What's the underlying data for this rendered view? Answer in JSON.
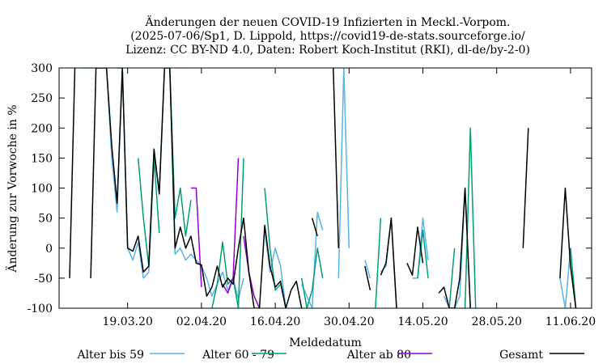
{
  "chart_data": {
    "type": "line",
    "title_lines": [
      "Änderungen der neuen COVID-19 Infizierten in Meckl.-Vorpom.",
      "(2025-07-06/Sp1, D. Lippold, https://covid19-de-stats.sourceforge.io/",
      "Lizenz: CC BY-ND 4.0, Daten: Robert Koch-Institut (RKI), dl-de/by-2-0)"
    ],
    "xlabel": "Meldedatum",
    "ylabel": "Änderung zur Vorwoche in %",
    "x_range": [
      "2020-03-06",
      "2020-06-15"
    ],
    "ylim": [
      -100,
      300
    ],
    "y_ticks": [
      -100,
      -50,
      0,
      50,
      100,
      150,
      200,
      250,
      300
    ],
    "x_ticks": [
      {
        "date": "2020-03-19",
        "label": "19.03.20"
      },
      {
        "date": "2020-04-02",
        "label": "02.04.20"
      },
      {
        "date": "2020-04-16",
        "label": "16.04.20"
      },
      {
        "date": "2020-04-30",
        "label": "30.04.20"
      },
      {
        "date": "2020-05-14",
        "label": "14.05.20"
      },
      {
        "date": "2020-05-28",
        "label": "28.05.20"
      },
      {
        "date": "2020-06-11",
        "label": "11.06.20"
      }
    ],
    "grid": false,
    "legend_position": "bottom",
    "series": [
      {
        "name": "Alter bis 59",
        "color": "#56b4e9",
        "points": [
          [
            "2020-03-10",
            300
          ],
          [
            "2020-03-14",
            300
          ],
          [
            "2020-03-15",
            300
          ],
          [
            "2020-03-16",
            150
          ],
          [
            "2020-03-17",
            60
          ],
          [
            "2020-03-18",
            300
          ],
          [
            "2020-03-19",
            0
          ],
          [
            "2020-03-20",
            -20
          ],
          [
            "2020-03-21",
            10
          ],
          [
            "2020-03-22",
            -50
          ],
          [
            "2020-03-23",
            -40
          ],
          [
            "2020-03-24",
            150
          ],
          [
            "2020-03-25",
            100
          ],
          [
            "2020-03-26",
            300
          ],
          [
            "2020-03-27",
            300
          ],
          [
            "2020-03-28",
            -10
          ],
          [
            "2020-03-29",
            0
          ],
          [
            "2020-03-30",
            -20
          ],
          [
            "2020-03-31",
            -10
          ],
          [
            "2020-04-01",
            -20
          ],
          [
            "2020-04-02",
            -30
          ],
          [
            "2020-04-03",
            -50
          ],
          [
            "2020-04-04",
            -80
          ],
          [
            "2020-04-05",
            -60
          ],
          [
            "2020-04-06",
            -40
          ],
          [
            "2020-04-07",
            -70
          ],
          [
            "2020-04-08",
            -50
          ],
          [
            "2020-04-09",
            -85
          ],
          [
            "2020-04-10",
            -50
          ],
          null,
          [
            "2020-04-14",
            30
          ],
          [
            "2020-04-15",
            -40
          ],
          [
            "2020-04-16",
            0
          ],
          [
            "2020-04-17",
            -30
          ],
          [
            "2020-04-18",
            -100
          ],
          null,
          [
            "2020-04-21",
            -60
          ],
          [
            "2020-04-22",
            -80
          ],
          [
            "2020-04-23",
            -100
          ],
          [
            "2020-04-24",
            60
          ],
          [
            "2020-04-25",
            30
          ],
          null,
          [
            "2020-04-28",
            -50
          ],
          [
            "2020-04-29",
            300
          ],
          [
            "2020-04-30",
            0
          ],
          null,
          [
            "2020-05-03",
            -20
          ],
          [
            "2020-05-04",
            -50
          ],
          null,
          [
            "2020-05-06",
            -40
          ],
          [
            "2020-05-07",
            -30
          ],
          [
            "2020-05-08",
            50
          ],
          [
            "2020-05-09",
            -100
          ],
          null,
          [
            "2020-05-12",
            -50
          ],
          [
            "2020-05-13",
            -50
          ],
          [
            "2020-05-14",
            50
          ],
          [
            "2020-05-15",
            -20
          ],
          null,
          [
            "2020-05-18",
            -80
          ],
          [
            "2020-05-19",
            -100
          ],
          [
            "2020-05-20",
            -100
          ],
          [
            "2020-05-21",
            -80
          ],
          [
            "2020-05-22",
            100
          ],
          [
            "2020-05-23",
            -100
          ],
          null,
          [
            "2020-06-09",
            -50
          ],
          [
            "2020-06-10",
            -100
          ],
          [
            "2020-06-11",
            0
          ],
          [
            "2020-06-12",
            -100
          ]
        ]
      },
      {
        "name": "Alter 60 - 79",
        "color": "#009e73",
        "points": [
          [
            "2020-03-17",
            300
          ],
          [
            "2020-03-18",
            300
          ],
          null,
          [
            "2020-03-21",
            150
          ],
          [
            "2020-03-22",
            50
          ],
          [
            "2020-03-23",
            -30
          ],
          [
            "2020-03-24",
            150
          ],
          [
            "2020-03-25",
            25
          ],
          null,
          [
            "2020-03-27",
            300
          ],
          [
            "2020-03-28",
            50
          ],
          [
            "2020-03-29",
            100
          ],
          [
            "2020-03-30",
            20
          ],
          [
            "2020-03-31",
            80
          ],
          null,
          [
            "2020-04-04",
            -100
          ],
          [
            "2020-04-05",
            -60
          ],
          [
            "2020-04-06",
            10
          ],
          [
            "2020-04-07",
            -60
          ],
          [
            "2020-04-08",
            -50
          ],
          [
            "2020-04-09",
            -100
          ],
          [
            "2020-04-10",
            150
          ],
          null,
          [
            "2020-04-14",
            100
          ],
          [
            "2020-04-15",
            0
          ],
          [
            "2020-04-16",
            -70
          ],
          [
            "2020-04-17",
            -60
          ],
          [
            "2020-04-18",
            -100
          ],
          null,
          [
            "2020-04-21",
            -50
          ],
          [
            "2020-04-22",
            -100
          ],
          [
            "2020-04-23",
            -70
          ],
          [
            "2020-04-24",
            0
          ],
          [
            "2020-04-25",
            -50
          ],
          null,
          [
            "2020-05-05",
            -100
          ],
          [
            "2020-05-06",
            50
          ],
          null,
          [
            "2020-05-13",
            -50
          ],
          [
            "2020-05-14",
            30
          ],
          [
            "2020-05-15",
            -50
          ],
          null,
          [
            "2020-05-19",
            -100
          ],
          [
            "2020-05-20",
            0
          ],
          null,
          [
            "2020-05-22",
            -100
          ],
          [
            "2020-05-23",
            200
          ],
          [
            "2020-05-24",
            -100
          ],
          null,
          [
            "2020-06-11",
            0
          ],
          [
            "2020-06-12",
            -100
          ]
        ]
      },
      {
        "name": "Alter ab 80",
        "color": "#9400d3",
        "points": [
          [
            "2020-03-31",
            100
          ],
          [
            "2020-04-01",
            100
          ],
          [
            "2020-04-02",
            -65
          ],
          null,
          [
            "2020-04-06",
            -60
          ],
          [
            "2020-04-07",
            -75
          ],
          [
            "2020-04-08",
            -50
          ],
          [
            "2020-04-09",
            150
          ],
          null,
          [
            "2020-04-10",
            20
          ],
          [
            "2020-04-11",
            -40
          ],
          [
            "2020-04-12",
            -80
          ],
          [
            "2020-04-13",
            -100
          ]
        ]
      },
      {
        "name": "Gesamt",
        "color": "#000000",
        "points": [
          [
            "2020-03-08",
            -50
          ],
          [
            "2020-03-09",
            300
          ],
          null,
          [
            "2020-03-12",
            -50
          ],
          [
            "2020-03-13",
            300
          ],
          [
            "2020-03-14",
            300
          ],
          [
            "2020-03-15",
            300
          ],
          [
            "2020-03-16",
            170
          ],
          [
            "2020-03-17",
            75
          ],
          [
            "2020-03-18",
            300
          ],
          [
            "2020-03-19",
            0
          ],
          [
            "2020-03-20",
            -5
          ],
          [
            "2020-03-21",
            20
          ],
          [
            "2020-03-22",
            -40
          ],
          [
            "2020-03-23",
            -30
          ],
          [
            "2020-03-24",
            165
          ],
          [
            "2020-03-25",
            90
          ],
          [
            "2020-03-26",
            300
          ],
          [
            "2020-03-27",
            300
          ],
          [
            "2020-03-28",
            0
          ],
          [
            "2020-03-29",
            35
          ],
          [
            "2020-03-30",
            0
          ],
          [
            "2020-03-31",
            20
          ],
          [
            "2020-04-01",
            -25
          ],
          [
            "2020-04-02",
            -28
          ],
          [
            "2020-04-03",
            -80
          ],
          [
            "2020-04-04",
            -65
          ],
          [
            "2020-04-05",
            -30
          ],
          [
            "2020-04-06",
            -65
          ],
          [
            "2020-04-07",
            -50
          ],
          [
            "2020-04-08",
            -60
          ],
          [
            "2020-04-09",
            0
          ],
          [
            "2020-04-10",
            50
          ],
          [
            "2020-04-11",
            -40
          ],
          [
            "2020-04-12",
            -100
          ],
          [
            "2020-04-13",
            -100
          ],
          [
            "2020-04-14",
            38
          ],
          [
            "2020-04-15",
            -30
          ],
          [
            "2020-04-16",
            -65
          ],
          [
            "2020-04-17",
            -55
          ],
          [
            "2020-04-18",
            -100
          ],
          [
            "2020-04-19",
            -70
          ],
          [
            "2020-04-20",
            -55
          ],
          [
            "2020-04-21",
            -100
          ],
          null,
          [
            "2020-04-23",
            50
          ],
          [
            "2020-04-24",
            20
          ],
          null,
          [
            "2020-04-27",
            300
          ],
          [
            "2020-04-28",
            0
          ],
          null,
          [
            "2020-05-03",
            -30
          ],
          [
            "2020-05-04",
            -70
          ],
          null,
          [
            "2020-05-06",
            -45
          ],
          [
            "2020-05-07",
            -25
          ],
          [
            "2020-05-08",
            50
          ],
          [
            "2020-05-09",
            -100
          ],
          null,
          [
            "2020-05-11",
            -25
          ],
          [
            "2020-05-12",
            -45
          ],
          [
            "2020-05-13",
            35
          ],
          [
            "2020-05-14",
            -25
          ],
          null,
          [
            "2020-05-17",
            -75
          ],
          [
            "2020-05-18",
            -65
          ],
          [
            "2020-05-19",
            -100
          ],
          [
            "2020-05-20",
            -100
          ],
          [
            "2020-05-21",
            -50
          ],
          [
            "2020-05-22",
            100
          ],
          [
            "2020-05-23",
            -100
          ],
          null,
          [
            "2020-06-02",
            0
          ],
          [
            "2020-06-03",
            200
          ],
          null,
          [
            "2020-06-09",
            -50
          ],
          [
            "2020-06-10",
            100
          ],
          [
            "2020-06-11",
            -30
          ],
          [
            "2020-06-12",
            -100
          ]
        ]
      }
    ]
  }
}
